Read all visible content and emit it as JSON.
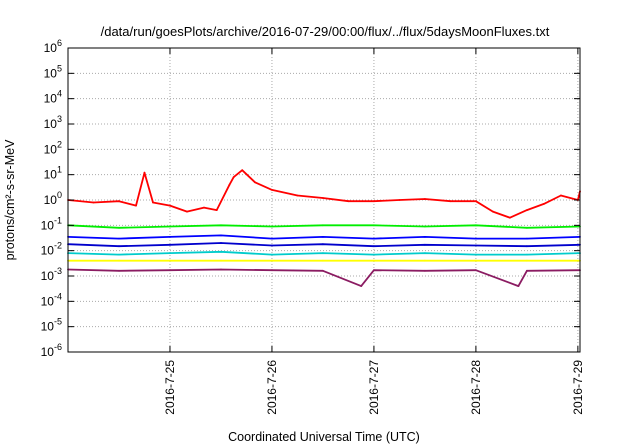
{
  "chart_data": {
    "type": "line",
    "title": "/data/run/goesPlots/archive/2016-07-29/00:00/flux/../flux/5daysMoonFluxes.txt",
    "xlabel": "Coordinated Universal Time (UTC)",
    "ylabel": "protons/cm²-s-sr-MeV",
    "y_scale": "log",
    "ylim": [
      1e-06,
      1000000.0
    ],
    "x_range": [
      "2016-07-24T00:00",
      "2016-07-29T00:30"
    ],
    "x_ticks": [
      "2016-7-25",
      "2016-7-26",
      "2016-7-27",
      "2016-7-28",
      "2016-7-29"
    ],
    "y_ticks": [
      {
        "base": "10",
        "exp": "-6"
      },
      {
        "base": "10",
        "exp": "-5"
      },
      {
        "base": "10",
        "exp": "-4"
      },
      {
        "base": "10",
        "exp": "-3"
      },
      {
        "base": "10",
        "exp": "-2"
      },
      {
        "base": "10",
        "exp": "-1"
      },
      {
        "base": "10",
        "exp": "0"
      },
      {
        "base": "10",
        "exp": "1"
      },
      {
        "base": "10",
        "exp": "2"
      },
      {
        "base": "10",
        "exp": "3"
      },
      {
        "base": "10",
        "exp": "4"
      },
      {
        "base": "10",
        "exp": "5"
      },
      {
        "base": "10",
        "exp": "6"
      }
    ],
    "grid": true,
    "series": [
      {
        "color": "#ff0000",
        "x": [
          "2016-07-24T00:00",
          "2016-07-24T06:00",
          "2016-07-24T12:00",
          "2016-07-24T16:00",
          "2016-07-24T18:00",
          "2016-07-24T20:00",
          "2016-07-25T00:00",
          "2016-07-25T04:00",
          "2016-07-25T08:00",
          "2016-07-25T11:00",
          "2016-07-25T14:00",
          "2016-07-25T15:00",
          "2016-07-25T17:00",
          "2016-07-25T20:00",
          "2016-07-26T00:00",
          "2016-07-26T06:00",
          "2016-07-26T12:00",
          "2016-07-26T18:00",
          "2016-07-27T00:00",
          "2016-07-27T06:00",
          "2016-07-27T12:00",
          "2016-07-27T18:00",
          "2016-07-28T00:00",
          "2016-07-28T04:00",
          "2016-07-28T08:00",
          "2016-07-28T12:00",
          "2016-07-28T16:00",
          "2016-07-28T20:00",
          "2016-07-29T00:00",
          "2016-07-29T00:30"
        ],
        "y": [
          1.0,
          0.8,
          0.9,
          0.6,
          12,
          0.8,
          0.6,
          0.35,
          0.5,
          0.4,
          4,
          8,
          15,
          5,
          2.5,
          1.5,
          1.2,
          0.9,
          0.9,
          1.0,
          1.1,
          0.9,
          0.9,
          0.35,
          0.2,
          0.4,
          0.7,
          1.5,
          1.0,
          2.2
        ]
      },
      {
        "color": "#00ee00",
        "x": [
          "2016-07-24T00:00",
          "2016-07-24T12:00",
          "2016-07-25T00:00",
          "2016-07-25T12:00",
          "2016-07-26T00:00",
          "2016-07-26T12:00",
          "2016-07-27T00:00",
          "2016-07-27T12:00",
          "2016-07-28T00:00",
          "2016-07-28T12:00",
          "2016-07-29T00:30"
        ],
        "y": [
          0.1,
          0.08,
          0.09,
          0.1,
          0.09,
          0.1,
          0.1,
          0.09,
          0.1,
          0.08,
          0.09
        ]
      },
      {
        "color": "#0000ff",
        "x": [
          "2016-07-24T00:00",
          "2016-07-24T12:00",
          "2016-07-25T00:00",
          "2016-07-25T12:00",
          "2016-07-26T00:00",
          "2016-07-26T12:00",
          "2016-07-27T00:00",
          "2016-07-27T12:00",
          "2016-07-28T00:00",
          "2016-07-28T12:00",
          "2016-07-29T00:30"
        ],
        "y": [
          0.035,
          0.03,
          0.035,
          0.04,
          0.03,
          0.035,
          0.03,
          0.035,
          0.03,
          0.03,
          0.035
        ]
      },
      {
        "color": "#0000cc",
        "x": [
          "2016-07-24T00:00",
          "2016-07-24T12:00",
          "2016-07-25T00:00",
          "2016-07-25T12:00",
          "2016-07-26T00:00",
          "2016-07-26T12:00",
          "2016-07-27T00:00",
          "2016-07-27T12:00",
          "2016-07-28T00:00",
          "2016-07-28T12:00",
          "2016-07-29T00:30"
        ],
        "y": [
          0.018,
          0.015,
          0.017,
          0.02,
          0.016,
          0.018,
          0.015,
          0.017,
          0.016,
          0.015,
          0.017
        ]
      },
      {
        "color": "#00cccc",
        "x": [
          "2016-07-24T00:00",
          "2016-07-24T12:00",
          "2016-07-25T00:00",
          "2016-07-25T12:00",
          "2016-07-26T00:00",
          "2016-07-26T12:00",
          "2016-07-27T00:00",
          "2016-07-27T12:00",
          "2016-07-28T00:00",
          "2016-07-28T12:00",
          "2016-07-29T00:30"
        ],
        "y": [
          0.008,
          0.007,
          0.008,
          0.009,
          0.007,
          0.008,
          0.007,
          0.008,
          0.007,
          0.007,
          0.008
        ]
      },
      {
        "color": "#ffff00",
        "x": [
          "2016-07-24T00:00",
          "2016-07-24T12:00",
          "2016-07-25T00:00",
          "2016-07-25T12:00",
          "2016-07-26T00:00",
          "2016-07-26T12:00",
          "2016-07-27T00:00",
          "2016-07-27T12:00",
          "2016-07-28T00:00",
          "2016-07-28T12:00",
          "2016-07-29T00:30"
        ],
        "y": [
          0.004,
          0.004,
          0.004,
          0.004,
          0.004,
          0.004,
          0.004,
          0.004,
          0.004,
          0.004,
          0.004
        ]
      },
      {
        "color": "#8b1c62",
        "x": [
          "2016-07-24T00:00",
          "2016-07-24T12:00",
          "2016-07-25T00:00",
          "2016-07-25T12:00",
          "2016-07-26T00:00",
          "2016-07-26T12:00",
          "2016-07-26T21:00",
          "2016-07-27T00:00",
          "2016-07-27T12:00",
          "2016-07-28T00:00",
          "2016-07-28T10:00",
          "2016-07-28T12:00",
          "2016-07-29T00:30"
        ],
        "y": [
          0.0018,
          0.0016,
          0.0017,
          0.0018,
          0.0017,
          0.0016,
          0.0004,
          0.0017,
          0.0016,
          0.0017,
          0.0004,
          0.0016,
          0.0017
        ]
      }
    ]
  }
}
